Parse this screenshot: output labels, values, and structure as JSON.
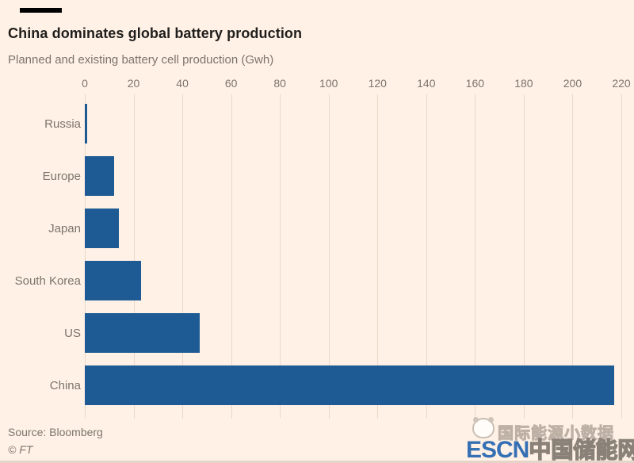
{
  "page": {
    "title": "China dominates global battery production",
    "subtitle": "Planned and existing battery cell production (Gwh)",
    "source": "Source: Bloomberg",
    "copyright": "© FT"
  },
  "chart_data": {
    "type": "bar",
    "orientation": "horizontal",
    "title": "China dominates global battery production",
    "subtitle": "Planned and existing battery cell production (Gwh)",
    "categories": [
      "Russia",
      "Europe",
      "Japan",
      "South Korea",
      "US",
      "China"
    ],
    "values": [
      1,
      12,
      14,
      23,
      47,
      217
    ],
    "unit": "Gwh",
    "xlabel": "",
    "ylabel": "",
    "xlim": [
      0,
      220
    ],
    "xticks": [
      0,
      20,
      40,
      60,
      80,
      100,
      120,
      140,
      160,
      180,
      200,
      220
    ],
    "grid": true,
    "tick_position": "top",
    "bar_color": "#1e5b94",
    "background_color": "#fff1e5",
    "gridline_color": "#ead9c9",
    "label_color": "#7c756b",
    "source": "Source: Bloomberg"
  },
  "watermark": {
    "line1": "国际能源小数据",
    "escn": "ESCN",
    "site": "中国储能网",
    "escn_color": "#3570b4",
    "logo": "panda-logo-icon"
  }
}
